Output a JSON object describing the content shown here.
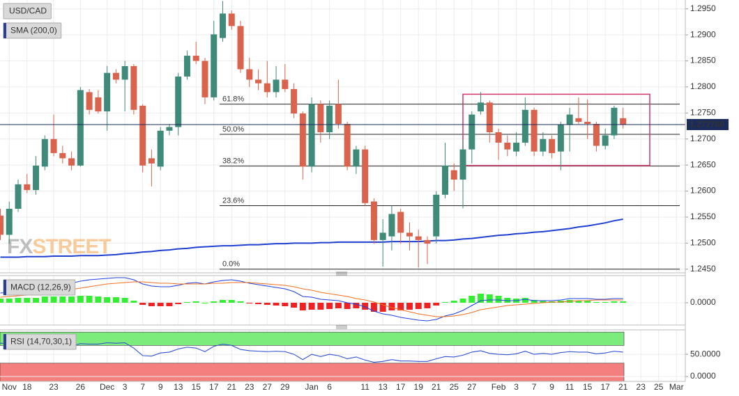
{
  "chart_data": [
    {
      "type": "candlestick",
      "title": "USD/CAD",
      "categories": [
        null,
        "Nov",
        null,
        "18",
        null,
        null,
        "23",
        null,
        null,
        "26",
        null,
        null,
        "Dec",
        null,
        "3",
        null,
        "7",
        null,
        "9",
        null,
        "13",
        null,
        "15",
        null,
        "17",
        null,
        "21",
        null,
        "23",
        null,
        "27",
        null,
        "29",
        null,
        null,
        "Jan",
        null,
        "6",
        null,
        null,
        null,
        "11",
        null,
        "13",
        null,
        "17",
        null,
        "19",
        null,
        "21",
        null,
        "25",
        null,
        "27",
        null,
        null,
        "Feb",
        null,
        "3",
        null,
        "7",
        null,
        "9",
        null,
        "11",
        null,
        "15",
        null,
        "17",
        null,
        "21",
        null,
        "23",
        null,
        "25",
        null,
        "Mar"
      ],
      "open": [
        1.2553,
        1.2516,
        1.2566,
        1.2613,
        1.2602,
        1.2647,
        1.27,
        1.2673,
        1.2663,
        1.2649,
        1.279,
        1.278,
        1.2753,
        1.2827,
        1.2814,
        1.284,
        1.2764,
        1.2663,
        1.2647,
        1.2716,
        1.2723,
        1.282,
        1.286,
        1.285,
        1.278,
        1.2894,
        1.2941,
        1.2917,
        1.2834,
        1.2814,
        1.2807,
        1.279,
        1.2814,
        1.2796,
        1.2749,
        1.2647,
        1.2767,
        1.2713,
        1.2767,
        1.2729,
        1.2647,
        1.268,
        1.258,
        1.2506,
        1.2513,
        1.256,
        1.252,
        1.2513,
        1.2506,
        1.2513,
        1.2593,
        1.264,
        1.2622,
        1.268,
        1.2753,
        1.277,
        1.2713,
        1.2693,
        1.2676,
        1.2693,
        1.2756,
        1.2676,
        1.27,
        1.2676,
        1.2727,
        1.274,
        1.2733,
        1.2729,
        1.2687,
        1.2707,
        1.274,
        null,
        null,
        null,
        null,
        null,
        null
      ],
      "high": [
        1.2566,
        1.258,
        1.2622,
        1.2633,
        1.2667,
        1.2707,
        1.2747,
        1.2687,
        1.2676,
        1.28,
        1.2796,
        1.2794,
        1.284,
        1.2834,
        1.285,
        1.2844,
        1.2767,
        1.268,
        1.2723,
        1.2729,
        1.2827,
        1.287,
        1.2887,
        1.2856,
        1.2927,
        1.2965,
        1.2947,
        1.2927,
        1.2856,
        1.2834,
        1.285,
        1.284,
        1.2844,
        1.2807,
        1.2753,
        1.278,
        1.2774,
        1.2774,
        1.2814,
        1.2733,
        1.2687,
        1.2687,
        1.2586,
        1.2546,
        1.2572,
        1.2566,
        1.254,
        1.2526,
        1.2513,
        1.26,
        1.2693,
        1.2653,
        1.27,
        1.2753,
        1.279,
        1.2774,
        1.272,
        1.2707,
        1.2713,
        1.278,
        1.276,
        1.2713,
        1.2707,
        1.2733,
        1.276,
        1.278,
        1.2776,
        1.2733,
        1.272,
        1.2764,
        1.276,
        null,
        null,
        null,
        null,
        null,
        null
      ],
      "low": [
        1.2506,
        1.2499,
        1.256,
        1.2596,
        1.2593,
        1.264,
        1.2667,
        1.2653,
        1.264,
        1.2647,
        1.2747,
        1.2749,
        1.2716,
        1.2807,
        1.2753,
        1.2747,
        1.2636,
        1.2609,
        1.264,
        1.2707,
        1.2707,
        1.2814,
        1.2844,
        1.2767,
        1.2774,
        1.2887,
        1.291,
        1.2827,
        1.28,
        1.2794,
        1.278,
        1.278,
        1.279,
        1.274,
        1.2622,
        1.2636,
        1.2693,
        1.27,
        1.272,
        1.264,
        1.2633,
        1.2572,
        1.2499,
        1.2455,
        1.2486,
        1.2499,
        1.2486,
        1.2453,
        1.246,
        1.2499,
        1.2586,
        1.26,
        1.2567,
        1.2653,
        1.2747,
        1.2693,
        1.266,
        1.2667,
        1.2667,
        1.2687,
        1.2667,
        1.2667,
        1.2663,
        1.264,
        1.2676,
        1.2729,
        1.27,
        1.2676,
        1.268,
        1.27,
        1.272,
        null,
        null,
        null,
        null,
        null,
        null
      ],
      "close": [
        1.2516,
        1.2566,
        1.2613,
        1.2602,
        1.2649,
        1.27,
        1.2673,
        1.2663,
        1.2649,
        1.2794,
        1.2756,
        1.2753,
        1.2827,
        1.2814,
        1.284,
        1.2756,
        1.2649,
        1.2653,
        1.2716,
        1.2723,
        1.282,
        1.286,
        1.285,
        1.278,
        1.2901,
        1.2941,
        1.2917,
        1.2834,
        1.2814,
        1.2807,
        1.279,
        1.2814,
        1.2796,
        1.2749,
        1.2647,
        1.2767,
        1.2713,
        1.2764,
        1.2729,
        1.2647,
        1.268,
        1.2577,
        1.2506,
        1.252,
        1.2556,
        1.252,
        1.2513,
        1.2506,
        1.2499,
        1.2593,
        1.2649,
        1.2622,
        1.268,
        1.2747,
        1.277,
        1.2713,
        1.2693,
        1.268,
        1.2693,
        1.2756,
        1.2676,
        1.27,
        1.2673,
        1.2727,
        1.2747,
        1.2733,
        1.2729,
        1.2687,
        1.2707,
        1.276,
        1.2727,
        null,
        null,
        null,
        null,
        null,
        null
      ],
      "up_color": "#3f8a78",
      "down_color": "#d9634c",
      "overlays": [
        {
          "name": "SMA (200,0)",
          "color": "#1f3fd1",
          "values": [
            1.2473,
            1.2473,
            1.2473,
            1.2474,
            1.2474,
            1.2474,
            1.2475,
            1.2475,
            1.2475,
            1.2476,
            1.2476,
            1.2476,
            1.2477,
            1.2478,
            1.248,
            1.2481,
            1.2483,
            1.2484,
            1.2486,
            1.2487,
            1.2489,
            1.249,
            1.2492,
            1.2493,
            1.2494,
            1.2495,
            1.2495,
            1.2496,
            1.2497,
            1.2497,
            1.2498,
            1.2499,
            1.2499,
            1.25,
            1.25,
            1.25,
            1.2501,
            1.2501,
            1.2502,
            1.2502,
            1.2502,
            1.2502,
            1.2502,
            1.2502,
            1.2503,
            1.2503,
            1.2503,
            1.2503,
            1.2504,
            1.2505,
            1.2505,
            1.2506,
            1.2508,
            1.2509,
            1.2511,
            1.2513,
            1.2515,
            1.2516,
            1.2518,
            1.2519,
            1.2521,
            1.2522,
            1.2524,
            1.2526,
            1.2528,
            1.2531,
            1.2533,
            1.2536,
            1.2539,
            1.2543,
            1.2546,
            null,
            null,
            null,
            null,
            null,
            null
          ]
        }
      ],
      "fibonacci": [
        {
          "label": "61.8%",
          "value": 1.2767
        },
        {
          "label": "50.0%",
          "value": 1.2709
        },
        {
          "label": "38.2%",
          "value": 1.2648
        },
        {
          "label": "23.6%",
          "value": 1.2572
        },
        {
          "label": "0.0%",
          "value": 1.245
        }
      ],
      "last_price": {
        "value": 1.27278,
        "label": "1.272780"
      },
      "box": {
        "high": 1.2786,
        "low": 1.2649,
        "color": "#d6336c"
      },
      "watermark": [
        "FX",
        "STREET"
      ],
      "ylim": [
        1.2443,
        1.2967
      ],
      "yticks": [
        {
          "value": 1.295,
          "label": "1.2950"
        },
        {
          "value": 1.29,
          "label": "1.2900"
        },
        {
          "value": 1.285,
          "label": "1.2850"
        },
        {
          "value": 1.28,
          "label": "1.2800"
        },
        {
          "value": 1.275,
          "label": "1.2750"
        },
        {
          "value": 1.27,
          "label": "1.2700"
        },
        {
          "value": 1.265,
          "label": "1.2650"
        },
        {
          "value": 1.26,
          "label": "1.2600"
        },
        {
          "value": 1.255,
          "label": "1.2550"
        },
        {
          "value": 1.25,
          "label": "1.2500"
        },
        {
          "value": 1.245,
          "label": "1.2450"
        }
      ],
      "grid": true
    },
    {
      "type": "macd",
      "title": "MACD (12,26,9)",
      "histogram": {
        "up_color": "#33ee33",
        "down_color": "#ee2222",
        "values": [
          0.0006,
          0.0006,
          0.0007,
          0.0007,
          0.0007,
          0.0009,
          0.0009,
          0.0009,
          0.0009,
          0.001,
          0.001,
          0.0009,
          0.0008,
          0.0008,
          0.0007,
          0.0003,
          -0.0003,
          -0.0005,
          -0.0005,
          -0.0005,
          -0.0002,
          0.0001,
          0.0002,
          0,
          0.0002,
          0.0004,
          0.0004,
          0.0002,
          -0.0001,
          -0.0002,
          -0.0003,
          -0.0004,
          -0.0005,
          -0.0007,
          -0.0011,
          -0.001,
          -0.001,
          -0.0009,
          -0.0008,
          -0.0009,
          -0.0008,
          -0.001,
          -0.0013,
          -0.0013,
          -0.0011,
          -0.0011,
          -0.001,
          -0.0009,
          -0.0008,
          -0.0004,
          0.0001,
          0.0003,
          0.0006,
          0.001,
          0.0013,
          0.0012,
          0.001,
          0.0007,
          0.0006,
          0.0007,
          0.0004,
          0.0003,
          0.0002,
          0.0003,
          0.0004,
          0.0003,
          0.0003,
          0.0001,
          0.0001,
          0.0002,
          0.0002,
          null,
          null,
          null,
          null,
          null,
          null
        ]
      },
      "series": [
        {
          "color": "#2040e0",
          "values": [
            0.0014,
            0.0015,
            0.0017,
            0.0018,
            0.002,
            0.0023,
            0.0025,
            0.0027,
            0.0028,
            0.0031,
            0.0033,
            0.0034,
            0.0035,
            0.0036,
            0.0036,
            0.0033,
            0.0027,
            0.0024,
            0.0023,
            0.0023,
            0.0025,
            0.0028,
            0.0029,
            0.0027,
            0.003,
            0.0032,
            0.0033,
            0.0031,
            0.0028,
            0.0026,
            0.0024,
            0.0022,
            0.002,
            0.0016,
            0.0009,
            0.0008,
            0.0005,
            0.0004,
            0.0003,
            0,
            -0.0002,
            -0.0006,
            -0.0012,
            -0.0016,
            -0.0018,
            -0.0021,
            -0.0023,
            -0.0025,
            -0.0026,
            -0.0024,
            -0.0019,
            -0.0016,
            -0.0011,
            -0.0004,
            0.0003,
            0.0004,
            0.0004,
            0.0003,
            0.0003,
            0.0005,
            0.0003,
            0.0003,
            0.0003,
            0.0004,
            0.0006,
            0.0006,
            0.0006,
            0.0005,
            0.0005,
            0.0006,
            0.0006,
            null,
            null,
            null,
            null,
            null,
            null
          ]
        },
        {
          "color": "#f07020",
          "values": [
            0.0008,
            0.0009,
            0.001,
            0.0011,
            0.0013,
            0.0014,
            0.0016,
            0.0018,
            0.0019,
            0.0021,
            0.0023,
            0.0025,
            0.0027,
            0.0028,
            0.0029,
            0.003,
            0.003,
            0.0029,
            0.0028,
            0.0028,
            0.0027,
            0.0027,
            0.0027,
            0.0027,
            0.0028,
            0.0028,
            0.0029,
            0.0029,
            0.0029,
            0.0028,
            0.0027,
            0.0026,
            0.0025,
            0.0023,
            0.002,
            0.0018,
            0.0015,
            0.0013,
            0.0011,
            0.0009,
            0.0006,
            0.0004,
            0.0001,
            -0.0003,
            -0.0007,
            -0.001,
            -0.0013,
            -0.0016,
            -0.0018,
            -0.002,
            -0.002,
            -0.0019,
            -0.0017,
            -0.0014,
            -0.001,
            -0.0008,
            -0.0006,
            -0.0004,
            -0.0003,
            -0.0002,
            -0.0001,
            0,
            0.0001,
            0.0001,
            0.0002,
            0.0003,
            0.0003,
            0.0004,
            0.0004,
            0.0004,
            0.0004,
            null,
            null,
            null,
            null,
            null,
            null
          ]
        }
      ],
      "ylim": [
        -0.0032,
        0.0039
      ],
      "yticks": [
        {
          "value": 0,
          "label": "0.0000"
        }
      ]
    },
    {
      "type": "rsi",
      "title": "RSI (14,70,30,1)",
      "color": "#3050d0",
      "values": [
        75,
        74,
        73,
        72,
        72,
        71,
        70,
        69,
        69,
        74,
        73,
        73,
        76,
        75,
        76,
        64,
        47,
        46,
        53,
        55,
        62,
        66,
        64,
        56,
        68,
        73,
        70,
        61,
        58,
        57,
        56,
        57,
        56,
        50,
        38,
        50,
        45,
        50,
        47,
        40,
        44,
        37,
        32,
        34,
        38,
        35,
        35,
        34,
        34,
        40,
        45,
        44,
        48,
        55,
        58,
        52,
        50,
        49,
        51,
        57,
        50,
        52,
        50,
        54,
        56,
        55,
        55,
        51,
        53,
        57,
        55,
        null,
        null,
        null,
        null,
        null,
        null
      ],
      "bands": [
        {
          "from": 70,
          "to": 100,
          "color": "#7ced7c"
        },
        {
          "from": 30,
          "to": -11,
          "color": "#f47f7f"
        }
      ],
      "ylim": [
        -11,
        105
      ],
      "yticks": [
        {
          "value": 50,
          "label": "50.0000"
        },
        {
          "value": 0,
          "label": "0.0000"
        }
      ]
    }
  ]
}
